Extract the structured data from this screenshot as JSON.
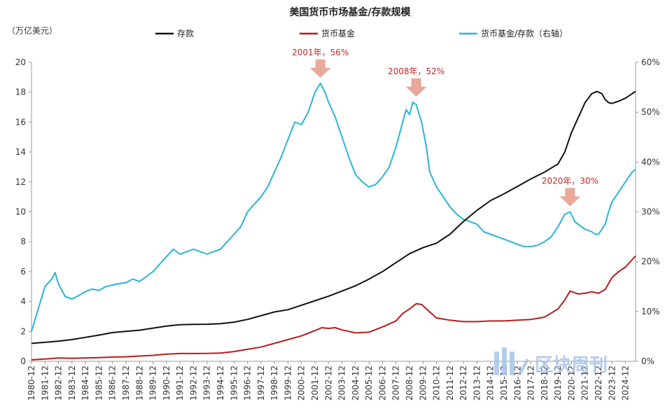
{
  "chart_data": {
    "type": "line",
    "title": "美国货币市场基金/存款规模",
    "left_axis_label": "（万亿美元）",
    "left_ylim": [
      0,
      20
    ],
    "left_ticks": [
      "0",
      "2",
      "4",
      "6",
      "8",
      "10",
      "12",
      "14",
      "16",
      "18",
      "20"
    ],
    "right_ylim": [
      0,
      60
    ],
    "right_ticks": [
      "0%",
      "10%",
      "20%",
      "30%",
      "40%",
      "50%",
      "60%"
    ],
    "x_tick_labels": [
      "1980-12",
      "1981-12",
      "1982-12",
      "1983-12",
      "1984-12",
      "1985-12",
      "1986-12",
      "1987-12",
      "1988-12",
      "1989-12",
      "1990-12",
      "1991-12",
      "1992-12",
      "1993-12",
      "1994-12",
      "1995-12",
      "1996-12",
      "1997-12",
      "1998-12",
      "1999-12",
      "2000-12",
      "2001-12",
      "2002-12",
      "2003-12",
      "2004-12",
      "2005-12",
      "2006-12",
      "2007-12",
      "2008-12",
      "2009-12",
      "2010-12",
      "2011-12",
      "2012-12",
      "2013-12",
      "2014-12",
      "2015-12",
      "2016-12",
      "2017-12",
      "2018-12",
      "2019-12",
      "2020-12",
      "2021-12",
      "2022-12",
      "2023-12",
      "2024-12"
    ],
    "x_start": 1980.0,
    "x_end": 2024.75,
    "series": [
      {
        "name": "存款",
        "axis": "left",
        "color": "#111111",
        "points": [
          [
            1980.0,
            1.2
          ],
          [
            1981.0,
            1.27
          ],
          [
            1982.0,
            1.35
          ],
          [
            1983.0,
            1.45
          ],
          [
            1984.0,
            1.6
          ],
          [
            1985.0,
            1.75
          ],
          [
            1986.0,
            1.92
          ],
          [
            1987.0,
            2.0
          ],
          [
            1988.0,
            2.08
          ],
          [
            1989.0,
            2.22
          ],
          [
            1990.0,
            2.35
          ],
          [
            1991.0,
            2.45
          ],
          [
            1992.0,
            2.47
          ],
          [
            1993.0,
            2.48
          ],
          [
            1994.0,
            2.52
          ],
          [
            1995.0,
            2.62
          ],
          [
            1996.0,
            2.8
          ],
          [
            1997.0,
            3.05
          ],
          [
            1998.0,
            3.3
          ],
          [
            1999.0,
            3.45
          ],
          [
            2000.0,
            3.75
          ],
          [
            2001.0,
            4.05
          ],
          [
            2002.0,
            4.35
          ],
          [
            2003.0,
            4.7
          ],
          [
            2004.0,
            5.05
          ],
          [
            2005.0,
            5.5
          ],
          [
            2006.0,
            6.0
          ],
          [
            2007.0,
            6.6
          ],
          [
            2008.0,
            7.2
          ],
          [
            2009.0,
            7.6
          ],
          [
            2010.0,
            7.9
          ],
          [
            2011.0,
            8.5
          ],
          [
            2012.0,
            9.35
          ],
          [
            2013.0,
            10.1
          ],
          [
            2014.0,
            10.75
          ],
          [
            2015.0,
            11.2
          ],
          [
            2016.0,
            11.7
          ],
          [
            2017.0,
            12.2
          ],
          [
            2018.0,
            12.65
          ],
          [
            2019.0,
            13.2
          ],
          [
            2019.5,
            14.0
          ],
          [
            2020.0,
            15.3
          ],
          [
            2020.25,
            15.8
          ],
          [
            2020.75,
            16.8
          ],
          [
            2021.0,
            17.3
          ],
          [
            2021.5,
            17.9
          ],
          [
            2021.9,
            18.05
          ],
          [
            2022.25,
            17.9
          ],
          [
            2022.5,
            17.5
          ],
          [
            2022.75,
            17.3
          ],
          [
            2023.0,
            17.25
          ],
          [
            2023.5,
            17.4
          ],
          [
            2024.0,
            17.6
          ],
          [
            2024.75,
            18.05
          ]
        ]
      },
      {
        "name": "货币基金",
        "axis": "left",
        "color": "#b71c1c",
        "points": [
          [
            1980.0,
            0.1
          ],
          [
            1981.0,
            0.15
          ],
          [
            1982.0,
            0.22
          ],
          [
            1983.0,
            0.2
          ],
          [
            1984.0,
            0.22
          ],
          [
            1985.0,
            0.25
          ],
          [
            1986.0,
            0.28
          ],
          [
            1987.0,
            0.3
          ],
          [
            1988.0,
            0.35
          ],
          [
            1989.0,
            0.4
          ],
          [
            1990.0,
            0.48
          ],
          [
            1991.0,
            0.52
          ],
          [
            1992.0,
            0.52
          ],
          [
            1993.0,
            0.53
          ],
          [
            1994.0,
            0.55
          ],
          [
            1995.0,
            0.65
          ],
          [
            1996.0,
            0.8
          ],
          [
            1997.0,
            0.95
          ],
          [
            1998.0,
            1.2
          ],
          [
            1999.0,
            1.45
          ],
          [
            2000.0,
            1.7
          ],
          [
            2001.0,
            2.05
          ],
          [
            2001.5,
            2.25
          ],
          [
            2002.0,
            2.2
          ],
          [
            2002.5,
            2.25
          ],
          [
            2003.0,
            2.1
          ],
          [
            2004.0,
            1.9
          ],
          [
            2005.0,
            1.95
          ],
          [
            2006.0,
            2.3
          ],
          [
            2007.0,
            2.7
          ],
          [
            2007.5,
            3.2
          ],
          [
            2008.0,
            3.5
          ],
          [
            2008.5,
            3.85
          ],
          [
            2008.9,
            3.8
          ],
          [
            2009.5,
            3.3
          ],
          [
            2010.0,
            2.9
          ],
          [
            2011.0,
            2.75
          ],
          [
            2012.0,
            2.65
          ],
          [
            2013.0,
            2.65
          ],
          [
            2014.0,
            2.7
          ],
          [
            2015.0,
            2.7
          ],
          [
            2016.0,
            2.75
          ],
          [
            2017.0,
            2.8
          ],
          [
            2018.0,
            2.95
          ],
          [
            2019.0,
            3.5
          ],
          [
            2019.5,
            4.1
          ],
          [
            2019.9,
            4.7
          ],
          [
            2020.5,
            4.5
          ],
          [
            2021.0,
            4.55
          ],
          [
            2021.5,
            4.65
          ],
          [
            2022.0,
            4.55
          ],
          [
            2022.5,
            4.8
          ],
          [
            2023.0,
            5.6
          ],
          [
            2023.5,
            6.0
          ],
          [
            2024.0,
            6.3
          ],
          [
            2024.75,
            7.05
          ]
        ]
      },
      {
        "name": "货币基金/存款（右轴）",
        "axis": "right",
        "color": "#2bb3d9",
        "points": [
          [
            1980.0,
            6.0
          ],
          [
            1980.5,
            10.5
          ],
          [
            1981.0,
            15.0
          ],
          [
            1981.5,
            16.5
          ],
          [
            1981.75,
            17.8
          ],
          [
            1982.0,
            15.5
          ],
          [
            1982.5,
            13.0
          ],
          [
            1983.0,
            12.5
          ],
          [
            1983.5,
            13.2
          ],
          [
            1984.0,
            14.0
          ],
          [
            1984.5,
            14.5
          ],
          [
            1985.0,
            14.2
          ],
          [
            1985.5,
            15.0
          ],
          [
            1986.0,
            15.3
          ],
          [
            1986.5,
            15.6
          ],
          [
            1987.0,
            15.8
          ],
          [
            1987.5,
            16.5
          ],
          [
            1988.0,
            16.0
          ],
          [
            1988.5,
            17.0
          ],
          [
            1989.0,
            18.0
          ],
          [
            1989.5,
            19.5
          ],
          [
            1990.0,
            21.0
          ],
          [
            1990.5,
            22.5
          ],
          [
            1991.0,
            21.5
          ],
          [
            1991.5,
            22.0
          ],
          [
            1992.0,
            22.5
          ],
          [
            1992.5,
            22.0
          ],
          [
            1993.0,
            21.5
          ],
          [
            1993.5,
            22.0
          ],
          [
            1994.0,
            22.5
          ],
          [
            1994.5,
            24.0
          ],
          [
            1995.0,
            25.5
          ],
          [
            1995.5,
            27.0
          ],
          [
            1996.0,
            30.0
          ],
          [
            1996.5,
            31.5
          ],
          [
            1997.0,
            33.0
          ],
          [
            1997.5,
            35.0
          ],
          [
            1998.0,
            38.0
          ],
          [
            1998.5,
            41.0
          ],
          [
            1999.0,
            44.5
          ],
          [
            1999.5,
            48.0
          ],
          [
            2000.0,
            47.5
          ],
          [
            2000.5,
            50.0
          ],
          [
            2001.0,
            54.0
          ],
          [
            2001.4,
            55.8
          ],
          [
            2001.75,
            54.0
          ],
          [
            2002.0,
            52.0
          ],
          [
            2002.5,
            49.0
          ],
          [
            2003.0,
            45.0
          ],
          [
            2003.5,
            41.0
          ],
          [
            2004.0,
            37.5
          ],
          [
            2004.5,
            36.0
          ],
          [
            2005.0,
            35.0
          ],
          [
            2005.5,
            35.5
          ],
          [
            2006.0,
            37.0
          ],
          [
            2006.5,
            39.0
          ],
          [
            2007.0,
            43.0
          ],
          [
            2007.5,
            48.0
          ],
          [
            2007.75,
            50.5
          ],
          [
            2008.0,
            49.5
          ],
          [
            2008.25,
            52.0
          ],
          [
            2008.5,
            51.5
          ],
          [
            2008.9,
            48.0
          ],
          [
            2009.25,
            43.0
          ],
          [
            2009.5,
            38.0
          ],
          [
            2010.0,
            35.0
          ],
          [
            2010.5,
            33.0
          ],
          [
            2011.0,
            31.0
          ],
          [
            2011.5,
            29.5
          ],
          [
            2012.0,
            28.5
          ],
          [
            2012.5,
            28.0
          ],
          [
            2013.0,
            27.5
          ],
          [
            2013.5,
            26.0
          ],
          [
            2014.0,
            25.5
          ],
          [
            2014.5,
            25.0
          ],
          [
            2015.0,
            24.5
          ],
          [
            2015.5,
            24.0
          ],
          [
            2016.0,
            23.5
          ],
          [
            2016.5,
            23.0
          ],
          [
            2017.0,
            23.0
          ],
          [
            2017.5,
            23.3
          ],
          [
            2018.0,
            24.0
          ],
          [
            2018.5,
            25.0
          ],
          [
            2019.0,
            27.0
          ],
          [
            2019.5,
            29.5
          ],
          [
            2019.9,
            30.0
          ],
          [
            2020.25,
            28.0
          ],
          [
            2020.75,
            27.0
          ],
          [
            2021.0,
            26.5
          ],
          [
            2021.5,
            26.0
          ],
          [
            2021.75,
            25.5
          ],
          [
            2022.0,
            25.5
          ],
          [
            2022.5,
            27.5
          ],
          [
            2022.75,
            30.0
          ],
          [
            2023.0,
            32.0
          ],
          [
            2023.5,
            34.0
          ],
          [
            2024.0,
            36.0
          ],
          [
            2024.5,
            38.0
          ],
          [
            2024.75,
            38.5
          ]
        ]
      }
    ],
    "annotations": [
      {
        "label": "2001年，56%",
        "x": 2001.4,
        "y": 55.8
      },
      {
        "label": "2008年，52%",
        "x": 2008.5,
        "y": 52.0
      },
      {
        "label": "2020年，30%",
        "x": 2019.9,
        "y": 30.0
      }
    ]
  },
  "watermark": {
    "text": "区块周刊",
    "icon": "pillars-logo-icon"
  },
  "colors": {
    "annotation": "#c62828",
    "arrow": "#e8a89a",
    "axis": "#999999"
  }
}
